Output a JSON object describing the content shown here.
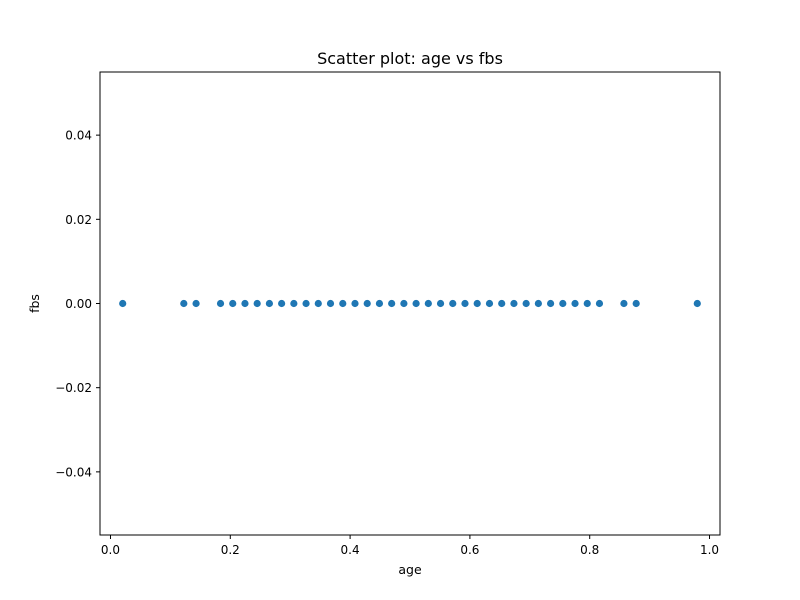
{
  "chart_data": {
    "type": "scatter",
    "title": "Scatter plot: age vs fbs",
    "xlabel": "age",
    "ylabel": "fbs",
    "xlim": [
      -0.0175,
      1.0175
    ],
    "ylim": [
      -0.055,
      0.055
    ],
    "xticks": [
      0.0,
      0.2,
      0.4,
      0.6,
      0.8,
      1.0
    ],
    "xtick_labels": [
      "0.0",
      "0.2",
      "0.4",
      "0.6",
      "0.8",
      "1.0"
    ],
    "yticks": [
      0.04,
      0.02,
      0.0,
      -0.02,
      -0.04
    ],
    "ytick_labels": [
      "0.04",
      "0.02",
      "0.00",
      "−0.02",
      "−0.04"
    ],
    "grid": false,
    "marker_color": "#1f77b4",
    "series": [
      {
        "x": [
          0.0204,
          0.1224,
          0.1429,
          0.1837,
          0.2041,
          0.2245,
          0.2449,
          0.2653,
          0.2857,
          0.3061,
          0.3265,
          0.3469,
          0.3673,
          0.3878,
          0.4082,
          0.4286,
          0.449,
          0.4694,
          0.4898,
          0.5102,
          0.5306,
          0.551,
          0.5714,
          0.5918,
          0.6122,
          0.6327,
          0.6531,
          0.6735,
          0.6939,
          0.7143,
          0.7347,
          0.7551,
          0.7755,
          0.7959,
          0.8163,
          0.8571,
          0.8776,
          0.9796
        ],
        "y": [
          0,
          0,
          0,
          0,
          0,
          0,
          0,
          0,
          0,
          0,
          0,
          0,
          0,
          0,
          0,
          0,
          0,
          0,
          0,
          0,
          0,
          0,
          0,
          0,
          0,
          0,
          0,
          0,
          0,
          0,
          0,
          0,
          0,
          0,
          0,
          0,
          0,
          0
        ]
      }
    ]
  }
}
